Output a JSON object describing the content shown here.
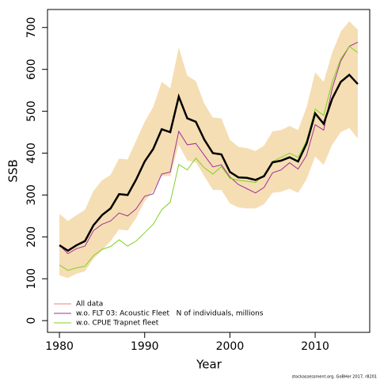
{
  "chart_data": {
    "type": "line",
    "ylabel": "SSB",
    "xlabel": "Year",
    "footnote": "stockassessment.org, GoBHer 2017, r8201",
    "x": [
      1980,
      1981,
      1982,
      1983,
      1984,
      1985,
      1986,
      1987,
      1988,
      1989,
      1990,
      1991,
      1992,
      1993,
      1994,
      1995,
      1996,
      1997,
      1998,
      1999,
      2000,
      2001,
      2002,
      2003,
      2004,
      2005,
      2006,
      2007,
      2008,
      2009,
      2010,
      2011,
      2012,
      2013,
      2014,
      2015
    ],
    "xlim": [
      1978.6,
      2016.4
    ],
    "xticks": [
      1980,
      1990,
      2000,
      2010
    ],
    "ylim": [
      -28,
      743
    ],
    "yticks": [
      0,
      100,
      200,
      300,
      400,
      500,
      600,
      700
    ],
    "legend": "bottom-left",
    "band": {
      "color": "#f5deb3",
      "upper": [
        255,
        238,
        252,
        265,
        310,
        335,
        348,
        387,
        385,
        430,
        475,
        510,
        570,
        555,
        652,
        585,
        572,
        518,
        485,
        483,
        432,
        415,
        412,
        405,
        418,
        452,
        455,
        465,
        455,
        510,
        593,
        570,
        640,
        690,
        715,
        695
      ],
      "lower": [
        108,
        102,
        112,
        118,
        148,
        168,
        190,
        218,
        215,
        245,
        285,
        310,
        345,
        345,
        420,
        382,
        378,
        345,
        312,
        312,
        280,
        270,
        268,
        268,
        278,
        305,
        308,
        315,
        305,
        338,
        392,
        372,
        420,
        450,
        460,
        435
      ]
    },
    "series": [
      {
        "name": "All data",
        "color": "#000000",
        "legend_color": "#f08080",
        "width": 2.5,
        "values": [
          180,
          167,
          180,
          190,
          228,
          252,
          268,
          302,
          300,
          337,
          380,
          410,
          457,
          450,
          535,
          483,
          475,
          432,
          400,
          397,
          355,
          342,
          341,
          336,
          345,
          378,
          382,
          390,
          380,
          423,
          495,
          470,
          530,
          570,
          587,
          565
        ]
      },
      {
        "name": "w.o. FLT 03: Acoustic Fleet   N of individuals, millions",
        "color": "#a0309a",
        "legend_color": "#a0309a",
        "width": 1,
        "values": [
          180,
          160,
          172,
          178,
          215,
          230,
          238,
          257,
          250,
          267,
          297,
          303,
          350,
          355,
          452,
          420,
          423,
          395,
          367,
          372,
          343,
          325,
          315,
          305,
          318,
          353,
          360,
          377,
          362,
          395,
          468,
          455,
          555,
          620,
          655,
          665
        ]
      },
      {
        "name": "w.o. CPUE Trapnet fleet",
        "color": "#7fd321",
        "legend_color": "#7fd321",
        "width": 1,
        "values": [
          133,
          120,
          126,
          130,
          155,
          170,
          177,
          193,
          178,
          190,
          210,
          230,
          265,
          283,
          373,
          360,
          388,
          365,
          350,
          368,
          340,
          335,
          333,
          330,
          348,
          380,
          390,
          400,
          390,
          430,
          505,
          490,
          570,
          625,
          655,
          640
        ]
      }
    ]
  }
}
